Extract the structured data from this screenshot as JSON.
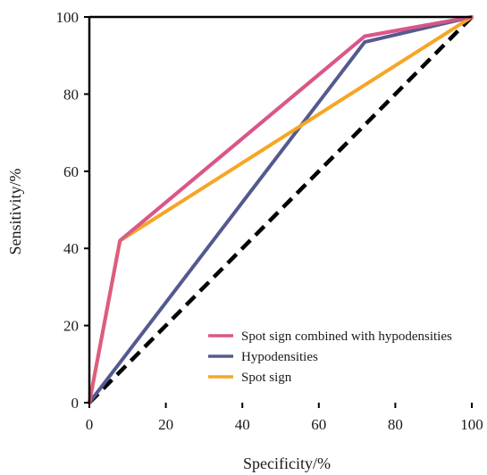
{
  "chart_data": {
    "type": "line",
    "title": "",
    "xlabel": "Specificity/%",
    "ylabel": "Sensitivity/%",
    "xlim": [
      0,
      100
    ],
    "ylim": [
      0,
      100
    ],
    "xticks": [
      "0",
      "20",
      "40",
      "60",
      "80",
      "100"
    ],
    "yticks": [
      "0",
      "20",
      "40",
      "60",
      "80",
      "100"
    ],
    "grid": false,
    "legend_position": "bottom-right",
    "series": [
      {
        "name": "Spot sign combined with hypodensities",
        "color": "#d9578a",
        "points": [
          [
            0,
            0
          ],
          [
            8,
            42
          ],
          [
            72,
            95
          ],
          [
            100,
            100
          ]
        ]
      },
      {
        "name": "Hypodensities",
        "color": "#545a8f",
        "points": [
          [
            0,
            0
          ],
          [
            72,
            93.5
          ],
          [
            100,
            100
          ]
        ]
      },
      {
        "name": "Spot sign",
        "color": "#f5a623",
        "points": [
          [
            0,
            0
          ],
          [
            8,
            42
          ],
          [
            100,
            100
          ]
        ]
      }
    ],
    "reference_line": {
      "color": "#000000",
      "style": "dashed",
      "points": [
        [
          0,
          0
        ],
        [
          100,
          100
        ]
      ]
    }
  }
}
